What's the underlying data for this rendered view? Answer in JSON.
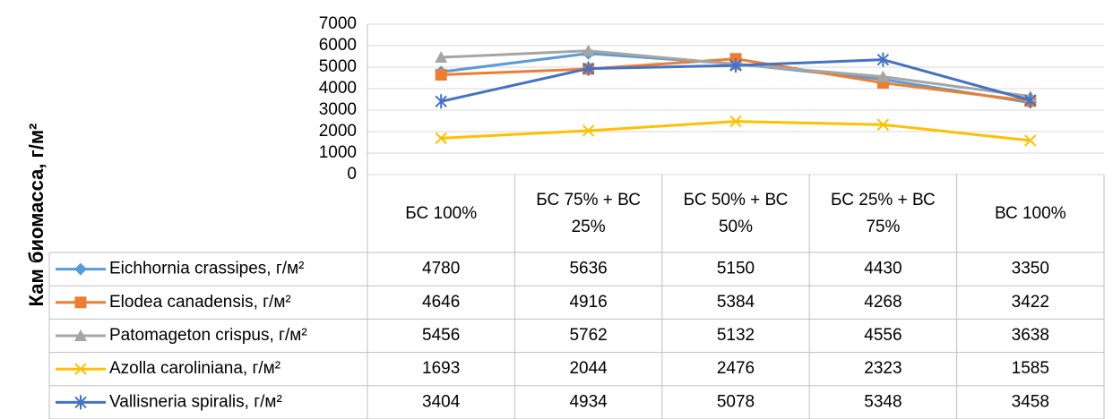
{
  "chart_data": {
    "type": "line",
    "y_axis_label": "Кам биомасса, г/м²",
    "categories": [
      "БС 100%",
      "БС 75% + ВС 25%",
      "БС 50% + ВС 50%",
      "БС 25% + ВС 75%",
      "ВС 100%"
    ],
    "ylim": [
      0,
      7000
    ],
    "yticks": [
      0,
      1000,
      2000,
      3000,
      4000,
      5000,
      6000,
      7000
    ],
    "grid": true,
    "series": [
      {
        "name": "Eichhornia crassipes, г/м²",
        "color": "#5b9bd5",
        "marker": "diamond",
        "values": [
          4780,
          5636,
          5150,
          4430,
          3350
        ]
      },
      {
        "name": "Elodea canadensis, г/м²",
        "color": "#ed7d31",
        "marker": "square",
        "values": [
          4646,
          4916,
          5384,
          4268,
          3422
        ]
      },
      {
        "name": "Patomageton crispus, г/м²",
        "color": "#a5a5a5",
        "marker": "triangle",
        "values": [
          5456,
          5762,
          5132,
          4556,
          3638
        ]
      },
      {
        "name": "Azolla caroliniana, г/м²",
        "color": "#ffc000",
        "marker": "x",
        "values": [
          1693,
          2044,
          2476,
          2323,
          1585
        ]
      },
      {
        "name": "Vallisneria spiralis, г/м²",
        "color": "#4472c4",
        "marker": "star",
        "values": [
          3404,
          4934,
          5078,
          5348,
          3458
        ]
      }
    ]
  }
}
